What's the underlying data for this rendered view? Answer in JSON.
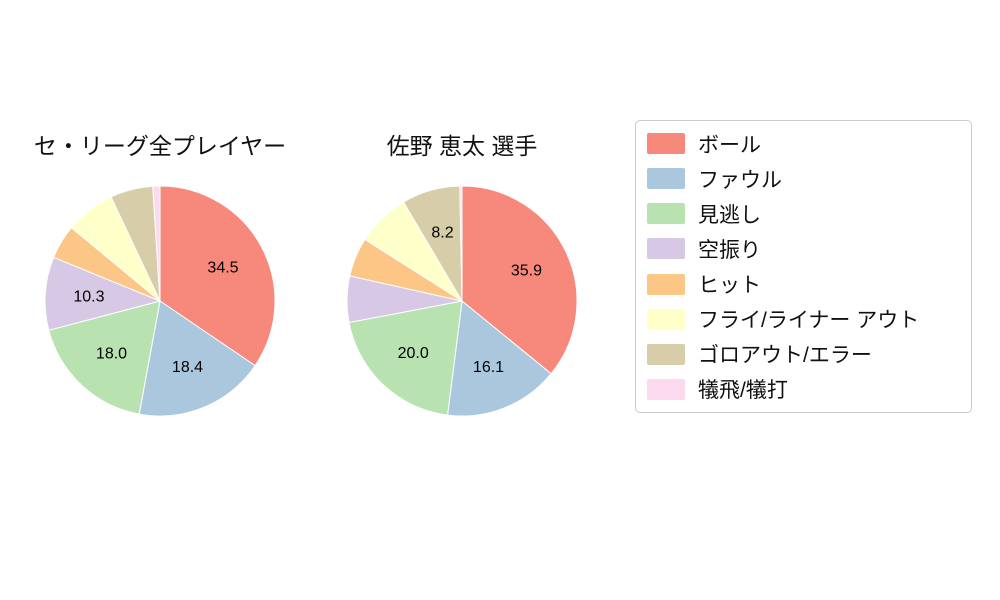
{
  "chart_data": {
    "type": "pie",
    "direction": "clockwise",
    "start_angle_deg": 0,
    "legend_position": "right",
    "label_threshold": 8,
    "categories": [
      "ボール",
      "ファウル",
      "見逃し",
      "空振り",
      "ヒット",
      "フライ/ライナー アウト",
      "ゴロアウト/エラー",
      "犠飛/犠打"
    ],
    "slice_names": [
      "ball",
      "foul",
      "called-strike",
      "swinging-strike",
      "hit",
      "fly-liner-out",
      "groundout-error",
      "sac-fly-bunt"
    ],
    "colors": [
      "#f7897c",
      "#aac7de",
      "#b8e2b0",
      "#d7c9e6",
      "#fbc686",
      "#ffffc9",
      "#d8cda9",
      "#fcd9ee"
    ],
    "charts": [
      {
        "title": "セ・リーグ全プレイヤー",
        "values": [
          34.5,
          18.4,
          18.0,
          10.3,
          4.8,
          7.0,
          6.0,
          1.0
        ],
        "labeled_values": [
          34.5,
          18.4,
          18.0,
          10.3
        ]
      },
      {
        "title": "佐野 恵太  選手",
        "values": [
          35.9,
          16.1,
          20.0,
          6.5,
          5.5,
          7.5,
          8.2,
          0.3
        ],
        "labeled_values": [
          35.9,
          16.1,
          20.0,
          8.2
        ]
      }
    ]
  }
}
